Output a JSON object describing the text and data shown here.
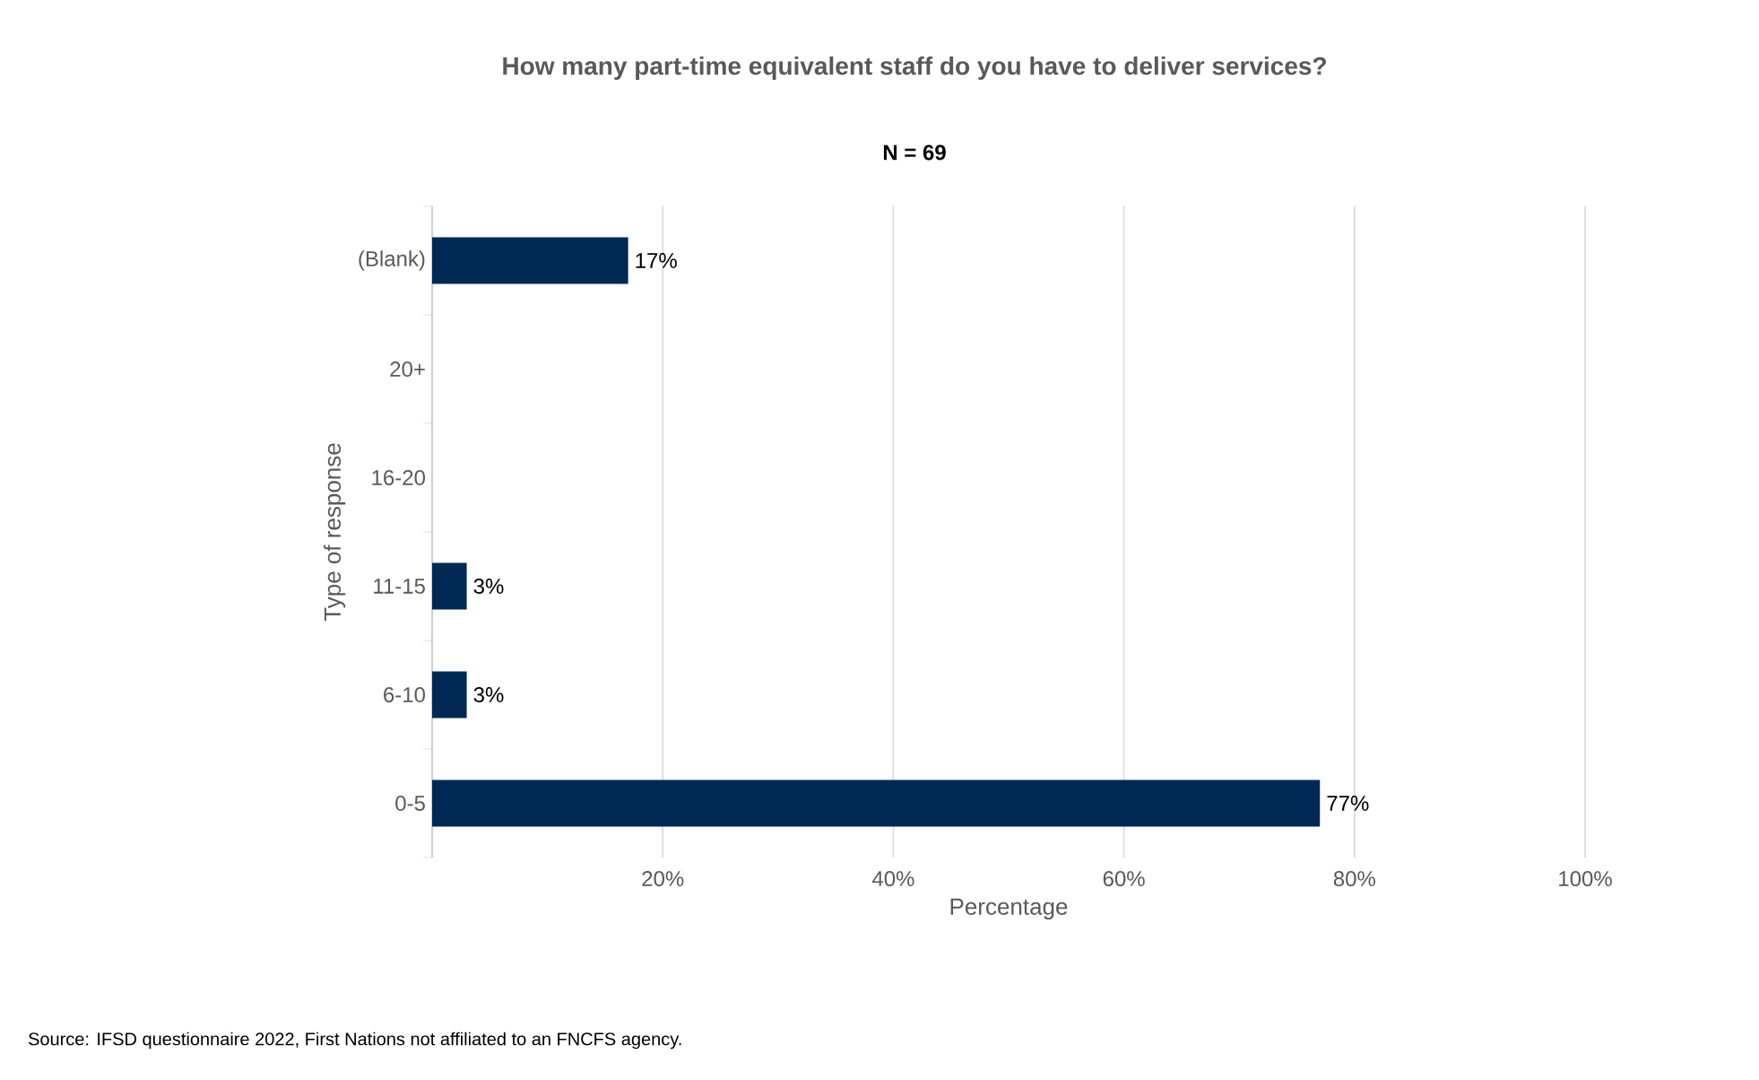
{
  "chart_data": {
    "type": "bar",
    "orientation": "horizontal",
    "title": "How many part-time equivalent staff do you have to deliver services?",
    "subtitle": "N = 69",
    "xlabel": "Percentage",
    "ylabel": "Type of response",
    "categories": [
      "(Blank)",
      "20+",
      "16-20",
      "11-15",
      "6-10",
      "0-5"
    ],
    "values": [
      17,
      0,
      0,
      3,
      3,
      77
    ],
    "value_labels": [
      "17%",
      null,
      null,
      "3%",
      "3%",
      "77%"
    ],
    "color": "#002855",
    "xlim": [
      0,
      100
    ],
    "xticks": [
      {
        "value": 0,
        "label": null
      },
      {
        "value": 20,
        "label": "20%"
      },
      {
        "value": 40,
        "label": "40%"
      },
      {
        "value": 60,
        "label": "60%"
      },
      {
        "value": 80,
        "label": "80%"
      },
      {
        "value": 100,
        "label": "100%"
      }
    ],
    "grid": "x",
    "annotations": [
      "Source: IFSD questionnaire 2022, First Nations not affiliated to an FNCFS agency."
    ]
  }
}
